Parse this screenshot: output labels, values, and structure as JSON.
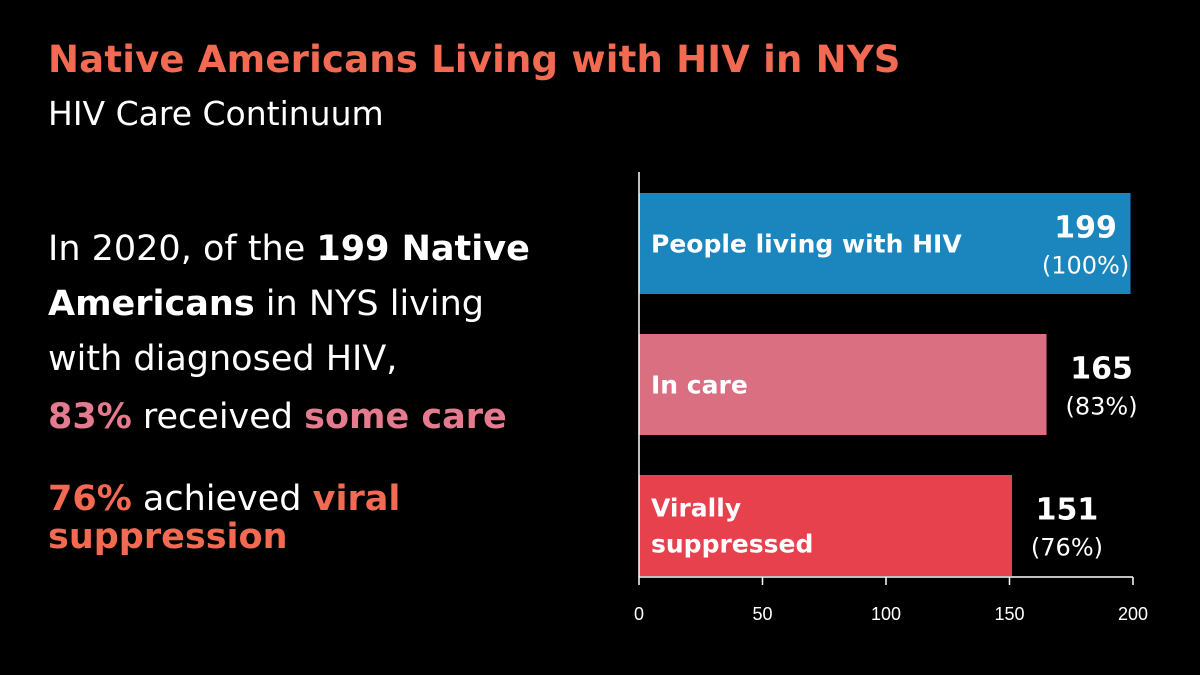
{
  "header": {
    "title": "Native Americans Living with HIV in NYS",
    "subtitle": "HIV Care Continuum"
  },
  "summary": {
    "line1_a": "In 2020, of the ",
    "line1_b": "199 Native",
    "line2_a": "Americans",
    "line2_b": " in NYS living",
    "line3": "with diagnosed HIV,"
  },
  "stats": {
    "care_pct": "83%",
    "care_mid": " received ",
    "care_hl": "some care",
    "vs_pct": "76%",
    "vs_mid": " achieved ",
    "vs_hl1": "viral",
    "vs_hl2": "suppression"
  },
  "colors": {
    "title": "#f26a52",
    "pink": "#e47b8e",
    "coral": "#f26a52"
  },
  "chart_data": {
    "type": "bar",
    "orientation": "horizontal",
    "categories": [
      "People living with HIV",
      "In care",
      "Virally suppressed"
    ],
    "label_lines": [
      [
        "People living with HIV"
      ],
      [
        "In care"
      ],
      [
        "Virally",
        "suppressed"
      ]
    ],
    "values": [
      199,
      165,
      151
    ],
    "value_labels": [
      "199",
      "165",
      "151"
    ],
    "pct_labels": [
      "(100%)",
      "(83%)",
      "(76%)"
    ],
    "bar_colors": [
      "#1a86bd",
      "#d96f80",
      "#e8414e"
    ],
    "xlim": [
      0,
      200
    ],
    "xticks": [
      0,
      50,
      100,
      150,
      200
    ],
    "grid": false,
    "legend": "none"
  }
}
